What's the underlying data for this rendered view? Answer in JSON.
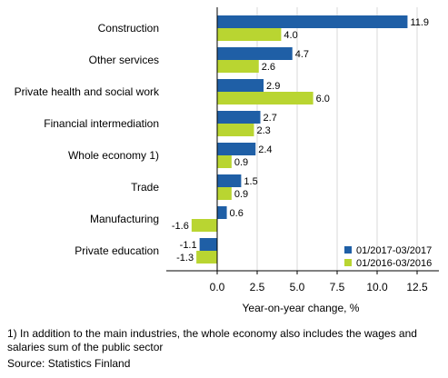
{
  "chart_data": {
    "type": "bar",
    "orientation": "horizontal",
    "categories": [
      "Construction",
      "Other services",
      "Private health and social work",
      "Financial intermediation",
      "Whole economy 1)",
      "Trade",
      "Manufacturing",
      "Private education"
    ],
    "series": [
      {
        "name": "01/2017-03/2017",
        "color": "#1f5fa6",
        "values": [
          11.9,
          4.7,
          2.9,
          2.7,
          2.4,
          1.5,
          0.6,
          -1.1
        ],
        "labels": [
          "11.9",
          "4.7",
          "2.9",
          "2.7",
          "2.4",
          "1.5",
          "0.6",
          "-1.1"
        ]
      },
      {
        "name": "01/2016-03/2016",
        "color": "#b9d531",
        "values": [
          4.0,
          2.6,
          6.0,
          2.3,
          0.9,
          0.9,
          -1.6,
          -1.3
        ],
        "labels": [
          "4.0",
          "2.6",
          "6.0",
          "2.3",
          "0.9",
          "0.9",
          "-1.6",
          "-1.3"
        ]
      }
    ],
    "xlabel": "Year-on-year change, %",
    "xticks": [
      0.0,
      2.5,
      5.0,
      7.5,
      10.0,
      12.5
    ],
    "xtick_labels": [
      "0.0",
      "2.5",
      "5.0",
      "7.5",
      "10.0",
      "12.5"
    ],
    "xlim": [
      -3.0,
      13.5
    ],
    "grid": true,
    "legend": "bottom-right"
  },
  "footnote": "1) In addition to the main industries, the whole economy also includes the wages and salaries sum of the public sector",
  "source": "Source: Statistics Finland"
}
